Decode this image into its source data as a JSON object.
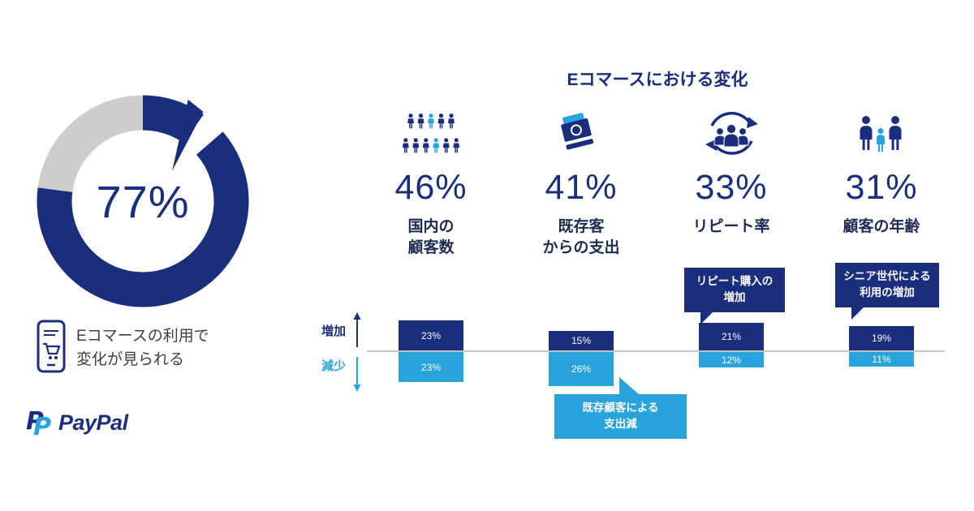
{
  "brand": {
    "logo_text": "PayPal",
    "colors": {
      "navy": "#1b2d7d",
      "light_blue": "#29a3dc",
      "gray": "#cdcdcd"
    }
  },
  "hero": {
    "percent": "77%",
    "caption": "Eコマースの利用で\n変化が見られる"
  },
  "main": {
    "title": "Eコマースにおける変化",
    "axis": {
      "increase_label": "増加",
      "decrease_label": "減少"
    },
    "columns": [
      {
        "icon": "customers-group-icon",
        "percent": "46%",
        "label": "国内の\n顧客数",
        "up_label": "23%",
        "up_value": 23,
        "down_label": "23%",
        "down_value": 23
      },
      {
        "icon": "money-bills-icon",
        "percent": "41%",
        "label": "既存客\nからの支出",
        "up_label": "15%",
        "up_value": 15,
        "down_label": "26%",
        "down_value": 26
      },
      {
        "icon": "repeat-cycle-icon",
        "percent": "33%",
        "label": "リピート率",
        "up_label": "21%",
        "up_value": 21,
        "down_label": "12%",
        "down_value": 12
      },
      {
        "icon": "family-ages-icon",
        "percent": "31%",
        "label": "顧客の年齢",
        "up_label": "19%",
        "up_value": 19,
        "down_label": "11%",
        "down_value": 11
      }
    ],
    "callouts": {
      "repeat": "リピート購入の\n増加",
      "senior": "シニア世代による\n利用の増加",
      "spending": "既存顧客による\n支出減"
    }
  },
  "chart_data": [
    {
      "type": "pie",
      "center_label": "77%",
      "values": [
        77,
        23
      ],
      "colors": [
        "#1b2d7d",
        "#cdcdcd"
      ],
      "caption": "Eコマースの利用で変化が見られる"
    },
    {
      "type": "bar",
      "title": "Eコマースにおける変化",
      "categories": [
        "国内の顧客数",
        "既存客からの支出",
        "リピート率",
        "顧客の年齢"
      ],
      "category_headline_percents": [
        46,
        41,
        33,
        31
      ],
      "series": [
        {
          "name": "増加",
          "values": [
            23,
            15,
            21,
            19
          ],
          "color": "#1b2d7d"
        },
        {
          "name": "減少",
          "values": [
            23,
            26,
            12,
            11
          ],
          "color": "#29a3dc"
        }
      ],
      "annotations": [
        "リピート購入の増加",
        "シニア世代による利用の増加",
        "既存顧客による支出減"
      ],
      "baseline": 0
    }
  ]
}
